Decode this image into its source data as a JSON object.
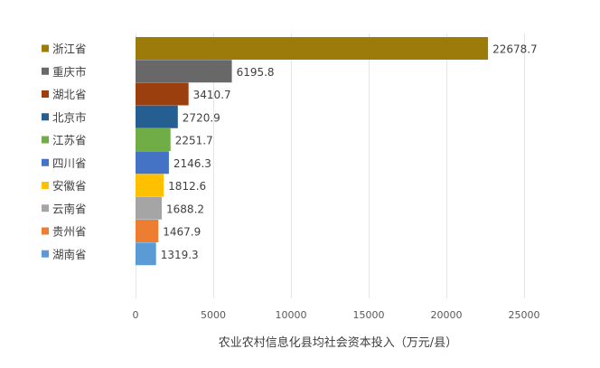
{
  "chart_data": {
    "type": "bar",
    "orientation": "horizontal",
    "categories": [
      "浙江省",
      "重庆市",
      "湖北省",
      "北京市",
      "江苏省",
      "四川省",
      "安徽省",
      "云南省",
      "贵州省",
      "湖南省"
    ],
    "values": [
      22678.7,
      6195.8,
      3410.7,
      2720.9,
      2251.7,
      2146.3,
      1812.6,
      1688.2,
      1467.9,
      1319.3
    ],
    "value_labels": [
      "22678.7",
      "6195.8",
      "3410.7",
      "2720.9",
      "2251.7",
      "2146.3",
      "1812.6",
      "1688.2",
      "1467.9",
      "1319.3"
    ],
    "colors": [
      "#9d7b0a",
      "#686868",
      "#9c3f0f",
      "#255e91",
      "#70ad47",
      "#4472c4",
      "#ffc000",
      "#a5a5a5",
      "#ed7d31",
      "#5b9bd5"
    ],
    "xlabel": "农业农村信息化县均社会资本投入（万元/县）",
    "xlim": [
      0,
      25000
    ],
    "xticks": [
      "0",
      "5000",
      "10000",
      "15000",
      "20000",
      "25000"
    ],
    "grid": true,
    "legend": "left"
  }
}
